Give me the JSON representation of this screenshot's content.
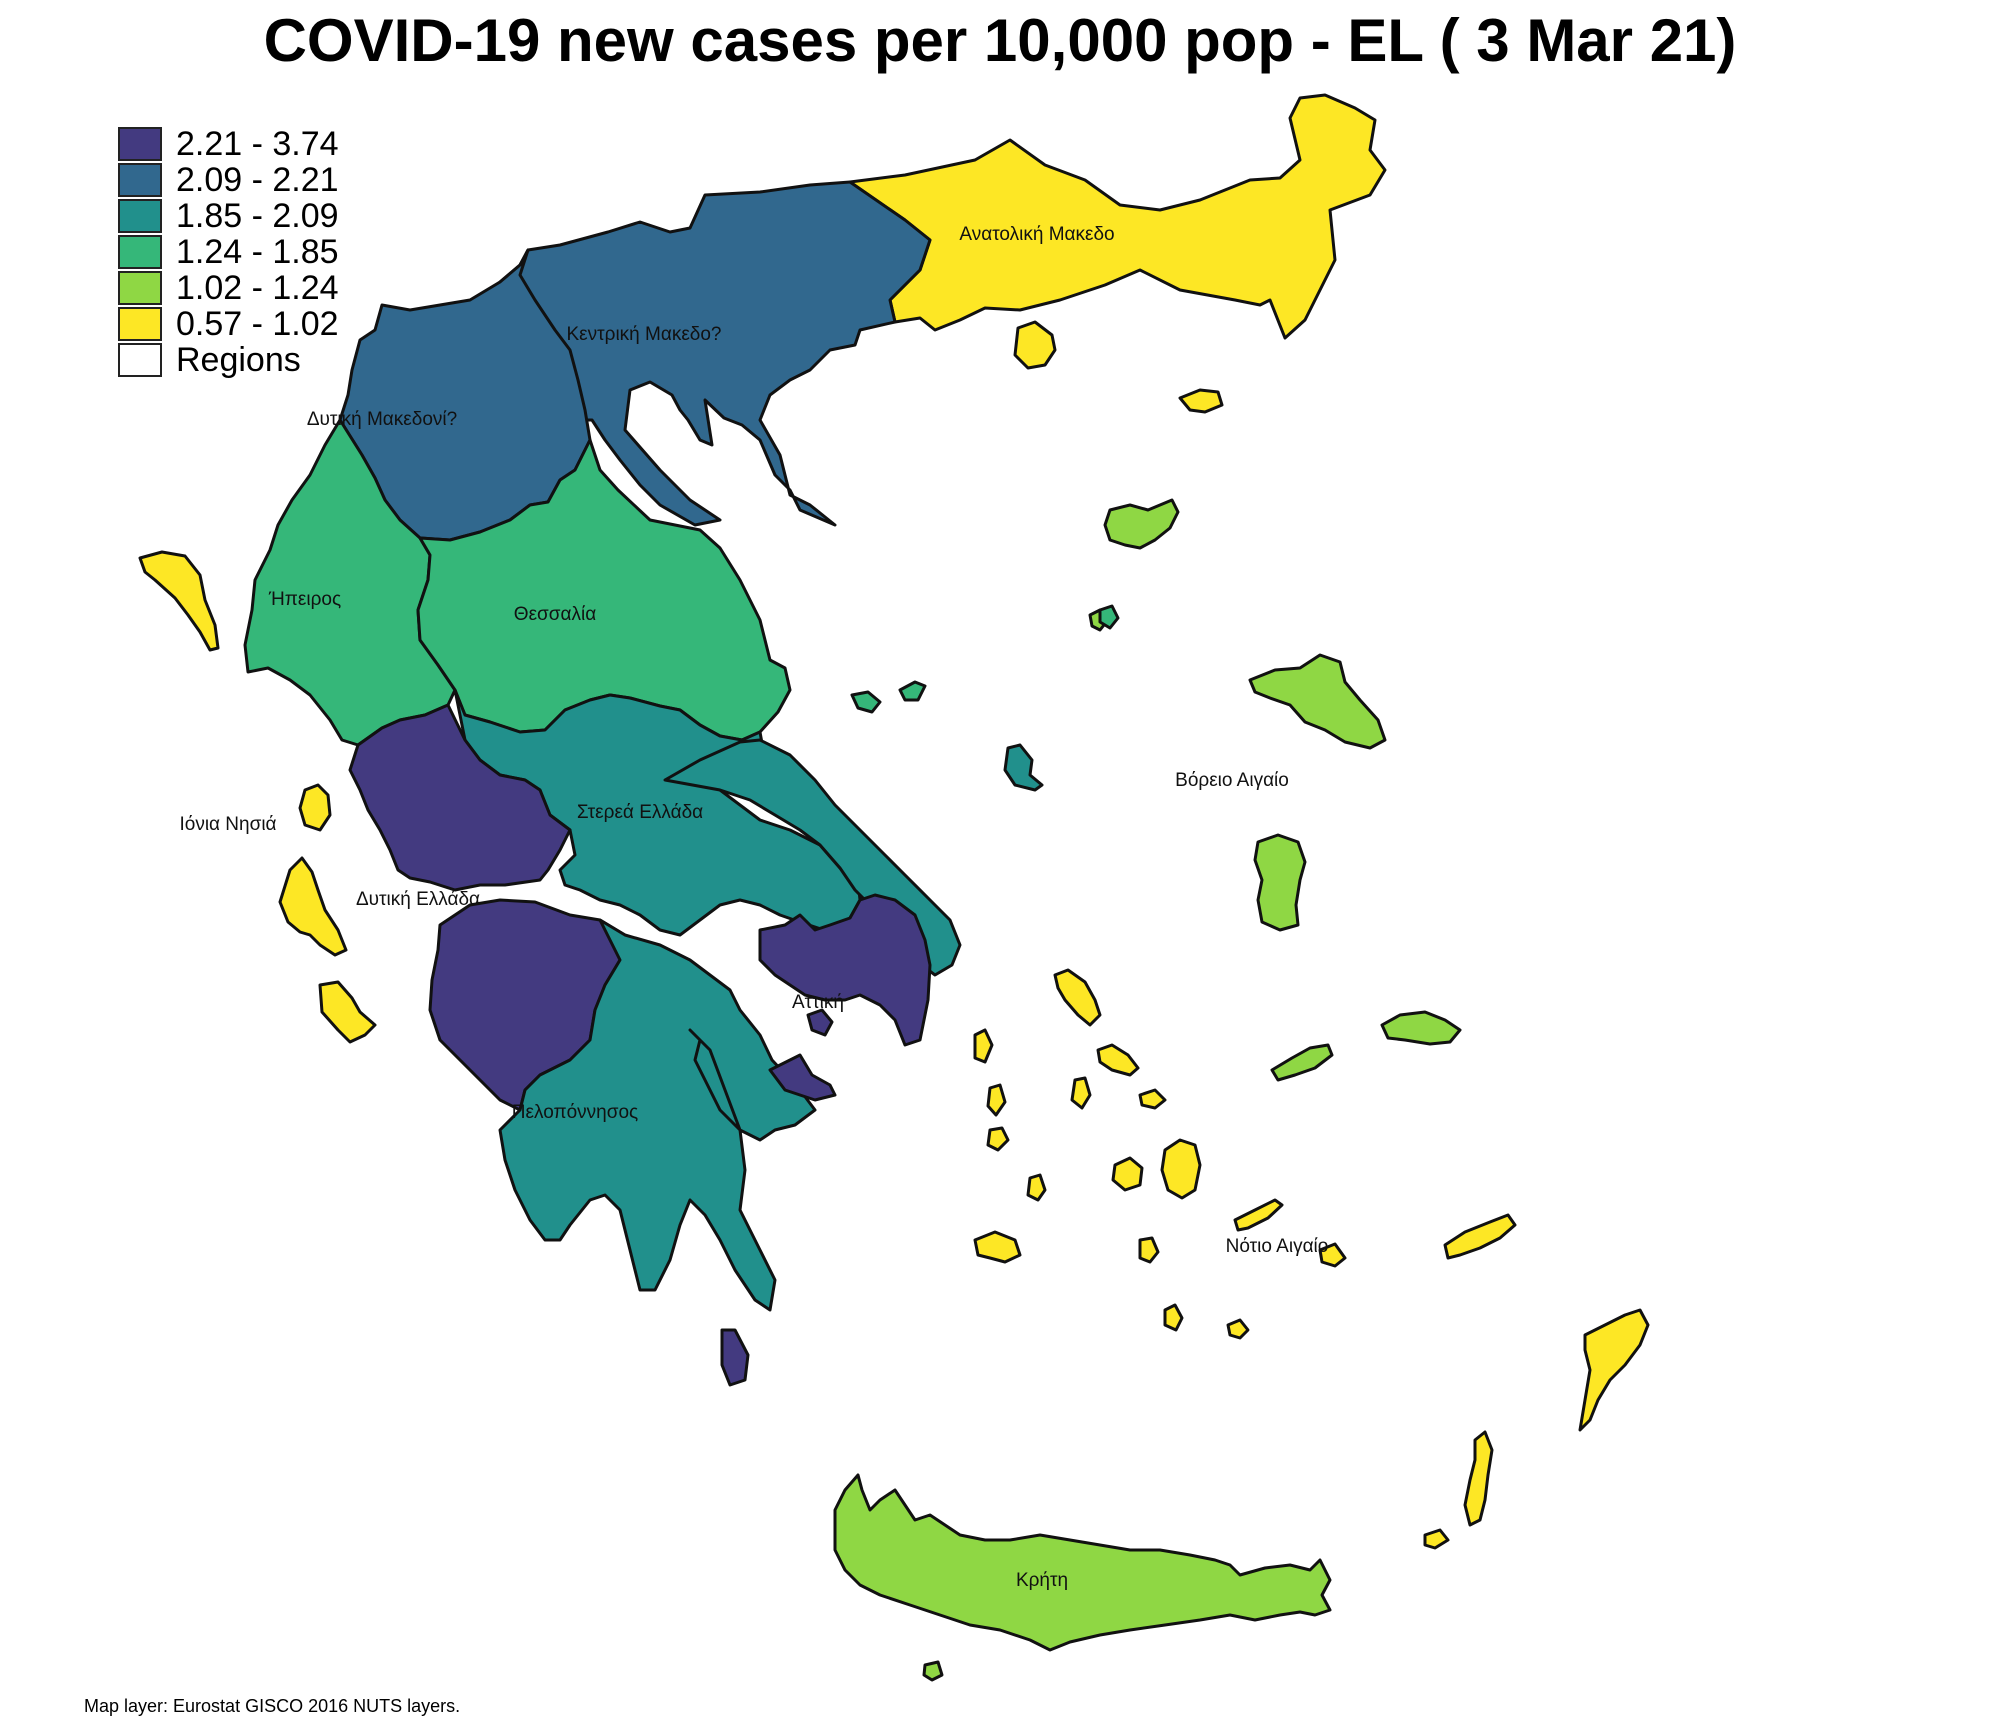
{
  "title": "COVID-19 new cases per 10,000 pop - EL ( 3 Mar 21)",
  "caption": "Map layer: Eurostat GISCO 2016 NUTS layers.",
  "legend": [
    {
      "label": "2.21 - 3.74",
      "color": "#433a80"
    },
    {
      "label": "2.09 - 2.21",
      "color": "#31688e"
    },
    {
      "label": "1.85 - 2.09",
      "color": "#21908c"
    },
    {
      "label": "1.24 - 1.85",
      "color": "#35b779"
    },
    {
      "label": "1.02 - 1.24",
      "color": "#8fd744"
    },
    {
      "label": "0.57 - 1.02",
      "color": "#fde725"
    },
    {
      "label": "Regions",
      "color": "#ffffff"
    }
  ],
  "regions": {
    "anatoliki_makedonia": {
      "label": "Ανατολική Μακεδο",
      "bin": "0.57 - 1.02"
    },
    "kentriki_makedonia": {
      "label": "Κεντρική Μακεδο?",
      "bin": "2.09 - 2.21"
    },
    "dytiki_makedonia": {
      "label": "Δυτική Μακεδονί?",
      "bin": "2.09 - 2.21"
    },
    "ipeiros": {
      "label": "Ήπειρος",
      "bin": "1.24 - 1.85"
    },
    "thessalia": {
      "label": "Θεσσαλία",
      "bin": "1.24 - 1.85"
    },
    "ionia_nisia": {
      "label": "Ιόνια Νησιά",
      "bin": "0.57 - 1.02"
    },
    "dytiki_ellada": {
      "label": "Δυτική Ελλάδα",
      "bin": "2.21 - 3.74"
    },
    "sterea_ellada": {
      "label": "Στερεά Ελλάδα",
      "bin": "1.85 - 2.09"
    },
    "attiki": {
      "label": "Αττική",
      "bin": "2.21 - 3.74"
    },
    "peloponnisos": {
      "label": "Πελοπόννησος",
      "bin": "1.85 - 2.09"
    },
    "voreio_aigaio": {
      "label": "Βόρειο Αιγαίο",
      "bin": "1.02 - 1.24"
    },
    "notio_aigaio": {
      "label": "Νότιο Αιγαίο",
      "bin": "0.57 - 1.02"
    },
    "kriti": {
      "label": "Κρήτη",
      "bin": "1.02 - 1.24"
    }
  }
}
